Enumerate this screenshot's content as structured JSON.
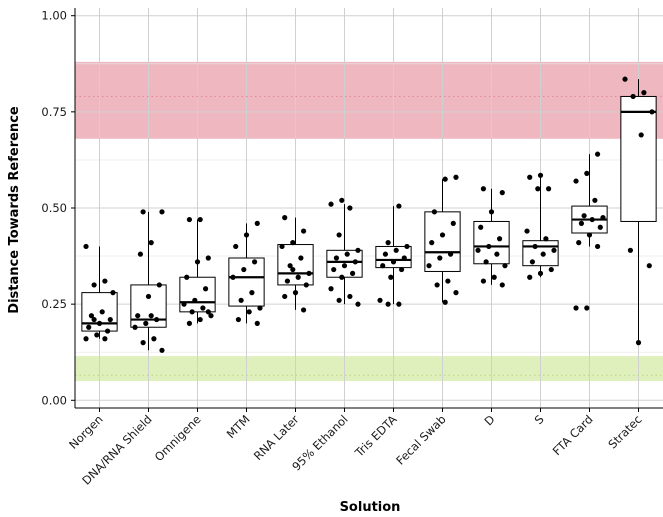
{
  "chart_data": {
    "type": "box",
    "xlabel": "Solution",
    "ylabel": "Distance Towards Reference",
    "ylim": [
      -0.02,
      1.02
    ],
    "yticks": [
      0.0,
      0.25,
      0.5,
      0.75,
      1.0
    ],
    "ytick_labels": [
      "0.00",
      "0.25",
      "0.50",
      "0.75",
      "1.00"
    ],
    "grid": true,
    "colors": {
      "box_stroke": "#000000",
      "point": "#000000",
      "red_band": "#efb8c0",
      "red_dotted": "#e7899a",
      "green_band": "#dff0bd",
      "green_dotted": "#b9d98a",
      "grid": "#d0d0d0",
      "axis": "#000000"
    },
    "bands": [
      {
        "name": "red",
        "ymin": 0.68,
        "ymax": 0.88,
        "line": 0.79
      },
      {
        "name": "green",
        "ymin": 0.05,
        "ymax": 0.115,
        "line": 0.065
      }
    ],
    "categories": [
      "Norgen",
      "DNA/RNA Shield",
      "Omnigene",
      "MTM",
      "RNA Later",
      "95% Ethanol",
      "Tris EDTA",
      "Fecal Swab",
      "D",
      "S",
      "FTA Card",
      "Stratec"
    ],
    "boxes": [
      {
        "category": "Norgen",
        "whisker_low": 0.16,
        "q1": 0.18,
        "median": 0.2,
        "q3": 0.28,
        "whisker_high": 0.4
      },
      {
        "category": "DNA/RNA Shield",
        "whisker_low": 0.13,
        "q1": 0.19,
        "median": 0.21,
        "q3": 0.3,
        "whisker_high": 0.49
      },
      {
        "category": "Omnigene",
        "whisker_low": 0.2,
        "q1": 0.23,
        "median": 0.255,
        "q3": 0.32,
        "whisker_high": 0.47
      },
      {
        "category": "MTM",
        "whisker_low": 0.2,
        "q1": 0.245,
        "median": 0.32,
        "q3": 0.37,
        "whisker_high": 0.46
      },
      {
        "category": "RNA Later",
        "whisker_low": 0.235,
        "q1": 0.3,
        "median": 0.33,
        "q3": 0.405,
        "whisker_high": 0.475
      },
      {
        "category": "95% Ethanol",
        "whisker_low": 0.25,
        "q1": 0.32,
        "median": 0.36,
        "q3": 0.39,
        "whisker_high": 0.51
      },
      {
        "category": "Tris EDTA",
        "whisker_low": 0.25,
        "q1": 0.345,
        "median": 0.365,
        "q3": 0.4,
        "whisker_high": 0.505
      },
      {
        "category": "Fecal Swab",
        "whisker_low": 0.255,
        "q1": 0.335,
        "median": 0.385,
        "q3": 0.49,
        "whisker_high": 0.575
      },
      {
        "category": "D",
        "whisker_low": 0.3,
        "q1": 0.355,
        "median": 0.4,
        "q3": 0.465,
        "whisker_high": 0.55
      },
      {
        "category": "S",
        "whisker_low": 0.32,
        "q1": 0.35,
        "median": 0.4,
        "q3": 0.415,
        "whisker_high": 0.58
      },
      {
        "category": "FTA Card",
        "whisker_low": 0.4,
        "q1": 0.435,
        "median": 0.47,
        "q3": 0.505,
        "whisker_high": 0.64
      },
      {
        "category": "Stratec",
        "whisker_low": 0.15,
        "q1": 0.465,
        "median": 0.75,
        "q3": 0.79,
        "whisker_high": 0.835
      }
    ],
    "points": [
      {
        "category": "Norgen",
        "values": [
          0.4,
          0.31,
          0.3,
          0.28,
          0.23,
          0.22,
          0.21,
          0.2,
          0.19,
          0.18,
          0.17,
          0.16,
          0.16,
          0.21
        ]
      },
      {
        "category": "DNA/RNA Shield",
        "values": [
          0.49,
          0.49,
          0.41,
          0.38,
          0.3,
          0.27,
          0.22,
          0.21,
          0.2,
          0.19,
          0.16,
          0.15,
          0.13,
          0.22
        ]
      },
      {
        "category": "Omnigene",
        "values": [
          0.47,
          0.47,
          0.37,
          0.36,
          0.32,
          0.29,
          0.26,
          0.25,
          0.24,
          0.23,
          0.22,
          0.21,
          0.2,
          0.23
        ]
      },
      {
        "category": "MTM",
        "values": [
          0.46,
          0.43,
          0.4,
          0.36,
          0.34,
          0.32,
          0.28,
          0.26,
          0.24,
          0.23,
          0.21,
          0.2
        ]
      },
      {
        "category": "RNA Later",
        "values": [
          0.475,
          0.44,
          0.41,
          0.4,
          0.37,
          0.35,
          0.33,
          0.32,
          0.31,
          0.3,
          0.28,
          0.27,
          0.235,
          0.34
        ]
      },
      {
        "category": "95% Ethanol",
        "values": [
          0.52,
          0.51,
          0.5,
          0.43,
          0.39,
          0.38,
          0.37,
          0.36,
          0.35,
          0.34,
          0.33,
          0.32,
          0.29,
          0.27,
          0.26,
          0.25
        ]
      },
      {
        "category": "Tris EDTA",
        "values": [
          0.505,
          0.41,
          0.4,
          0.39,
          0.38,
          0.37,
          0.36,
          0.35,
          0.34,
          0.32,
          0.26,
          0.25,
          0.25
        ]
      },
      {
        "category": "Fecal Swab",
        "values": [
          0.58,
          0.575,
          0.49,
          0.46,
          0.43,
          0.41,
          0.38,
          0.37,
          0.35,
          0.31,
          0.3,
          0.28,
          0.255
        ]
      },
      {
        "category": "D",
        "values": [
          0.55,
          0.54,
          0.49,
          0.45,
          0.42,
          0.4,
          0.39,
          0.38,
          0.36,
          0.35,
          0.32,
          0.31,
          0.3
        ]
      },
      {
        "category": "S",
        "values": [
          0.585,
          0.58,
          0.55,
          0.55,
          0.44,
          0.42,
          0.4,
          0.39,
          0.38,
          0.36,
          0.34,
          0.33,
          0.32
        ]
      },
      {
        "category": "FTA Card",
        "values": [
          0.64,
          0.59,
          0.57,
          0.52,
          0.48,
          0.475,
          0.47,
          0.46,
          0.45,
          0.43,
          0.41,
          0.4,
          0.24,
          0.24
        ]
      },
      {
        "category": "Stratec",
        "values": [
          0.835,
          0.8,
          0.79,
          0.75,
          0.69,
          0.39,
          0.35,
          0.15
        ]
      }
    ]
  }
}
